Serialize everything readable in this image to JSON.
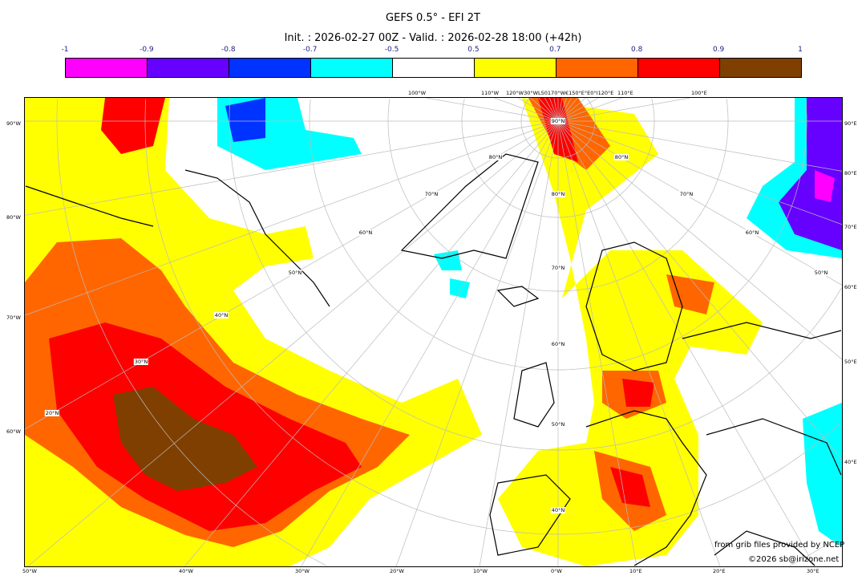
{
  "title": "GEFS 0.5° - EFI 2T",
  "subtitle": "Init. : 2026-02-27 00Z - Valid. : 2026-02-28 18:00 (+42h)",
  "colorbar": {
    "labels": [
      "-1",
      "-0.9",
      "-0.8",
      "-0.7",
      "-0.5",
      "0.5",
      "0.7",
      "0.8",
      "0.9",
      "1"
    ],
    "colors": [
      "#ff00ff",
      "#6600ff",
      "#0033ff",
      "#00ffff",
      "#ffffff",
      "#ffff00",
      "#ff6600",
      "#ff0000",
      "#7f3f00"
    ]
  },
  "axes": {
    "left": [
      "90°W",
      "80°W",
      "70°W",
      "60°W"
    ],
    "right": [
      "90°E",
      "80°E",
      "70°E",
      "60°E",
      "50°E",
      "40°E"
    ],
    "bottom": [
      "50°W",
      "40°W",
      "30°W",
      "20°W",
      "10°W",
      "0°W",
      "10°E",
      "20°E",
      "30°E"
    ],
    "top": [
      "100°W",
      "110°W",
      "120°W30°WL50170°W€150°E°E0°I120°E",
      "110°E",
      "100°E"
    ]
  },
  "lat_labels": [
    "90°N",
    "80°N",
    "80°N",
    "80°N",
    "70°N",
    "70°N",
    "70°N",
    "60°N",
    "60°N",
    "60°N",
    "50°N",
    "50°N",
    "50°N",
    "40°N",
    "40°N",
    "30°N",
    "20°N"
  ],
  "credits": {
    "line1": "from grib files provided by NCEP",
    "line2": "©2026 sb@irizone.net"
  }
}
